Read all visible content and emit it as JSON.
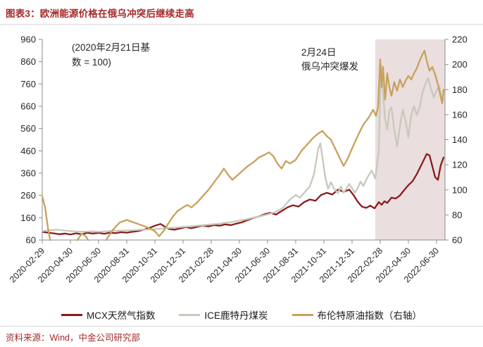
{
  "header": {
    "title": "图表3：欧洲能源价格在俄乌冲突后继续走高"
  },
  "source": "资料来源：Wind，中金公司研究部",
  "annotations": {
    "baseline_note_line1": "(2020年2月21日基",
    "baseline_note_line2": "数 = 100)",
    "conflict_note_line1": "2月24日",
    "conflict_note_line2": "俄乌冲突爆发"
  },
  "legend": {
    "items": [
      {
        "label": "MCX天然气指数",
        "color": "#8B1C1C"
      },
      {
        "label": "ICE鹿特丹煤炭",
        "color": "#C8C8BC"
      },
      {
        "label": "布伦特原油指数（右轴）",
        "color": "#C7A15C"
      }
    ]
  },
  "chart_data": {
    "type": "line",
    "title": "欧洲能源价格在俄乌冲突后继续走高",
    "subtitle_note": "(2020年2月21日基数 = 100)",
    "x_unit": "months since 2020-02-29",
    "x_range": [
      0,
      28.6
    ],
    "x_tick_positions": [
      0,
      2,
      4,
      6,
      8,
      10,
      12,
      14,
      16,
      18,
      20,
      22,
      24,
      26,
      28
    ],
    "x_tick_labels": [
      "2020-02-29",
      "2020-04-30",
      "2020-06-30",
      "2020-08-31",
      "2020-10-31",
      "2020-12-31",
      "2021-02-28",
      "2021-04-30",
      "2021-06-30",
      "2021-08-31",
      "2021-10-31",
      "2021-12-31",
      "2022-02-28",
      "2022-04-30",
      "2022-06-30"
    ],
    "left_axis": {
      "min": 60,
      "max": 960,
      "tick_step": 100,
      "ticks": [
        60,
        160,
        260,
        360,
        460,
        560,
        660,
        760,
        860,
        960
      ]
    },
    "right_axis": {
      "min": 60,
      "max": 220,
      "tick_step": 20,
      "ticks": [
        60,
        80,
        100,
        120,
        140,
        160,
        180,
        200,
        220
      ]
    },
    "grid": false,
    "legend_position": "bottom",
    "shaded_region": {
      "x_from": 23.65,
      "x_to": 28.6,
      "color": "#EADEDE",
      "meaning": "2月24日俄乌冲突爆发后区间"
    },
    "axis_color": "#8c8c8c",
    "series": [
      {
        "name": "MCX天然气指数",
        "axis": "left",
        "color": "#8B1C1C",
        "points": [
          [
            0,
            97
          ],
          [
            0.4,
            93
          ],
          [
            0.8,
            90
          ],
          [
            1.2,
            86
          ],
          [
            1.6,
            89
          ],
          [
            2,
            85
          ],
          [
            2.4,
            90
          ],
          [
            2.8,
            86
          ],
          [
            3.2,
            92
          ],
          [
            3.6,
            89
          ],
          [
            4,
            92
          ],
          [
            4.4,
            88
          ],
          [
            4.8,
            93
          ],
          [
            5.2,
            91
          ],
          [
            5.6,
            95
          ],
          [
            6,
            93
          ],
          [
            6.4,
            97
          ],
          [
            6.8,
            100
          ],
          [
            7.2,
            106
          ],
          [
            7.6,
            114
          ],
          [
            8,
            124
          ],
          [
            8.4,
            132
          ],
          [
            8.7,
            120
          ],
          [
            9,
            110
          ],
          [
            9.4,
            106
          ],
          [
            9.8,
            112
          ],
          [
            10.2,
            118
          ],
          [
            10.6,
            113
          ],
          [
            11,
            119
          ],
          [
            11.4,
            125
          ],
          [
            11.8,
            121
          ],
          [
            12.2,
            127
          ],
          [
            12.6,
            124
          ],
          [
            13,
            130
          ],
          [
            13.4,
            127
          ],
          [
            13.8,
            134
          ],
          [
            14.2,
            140
          ],
          [
            14.6,
            150
          ],
          [
            15,
            159
          ],
          [
            15.4,
            166
          ],
          [
            15.8,
            176
          ],
          [
            16.2,
            182
          ],
          [
            16.6,
            174
          ],
          [
            17,
            190
          ],
          [
            17.4,
            206
          ],
          [
            17.8,
            216
          ],
          [
            18.2,
            210
          ],
          [
            18.6,
            230
          ],
          [
            19,
            242
          ],
          [
            19.4,
            236
          ],
          [
            19.8,
            262
          ],
          [
            20.2,
            272
          ],
          [
            20.6,
            264
          ],
          [
            21,
            286
          ],
          [
            21.4,
            276
          ],
          [
            21.8,
            286
          ],
          [
            22.1,
            262
          ],
          [
            22.4,
            232
          ],
          [
            22.7,
            210
          ],
          [
            23,
            204
          ],
          [
            23.3,
            214
          ],
          [
            23.6,
            202
          ],
          [
            23.9,
            230
          ],
          [
            24.1,
            218
          ],
          [
            24.3,
            234
          ],
          [
            24.5,
            226
          ],
          [
            24.8,
            250
          ],
          [
            25.1,
            246
          ],
          [
            25.4,
            260
          ],
          [
            25.7,
            284
          ],
          [
            26,
            306
          ],
          [
            26.3,
            324
          ],
          [
            26.6,
            356
          ],
          [
            26.9,
            394
          ],
          [
            27.1,
            420
          ],
          [
            27.3,
            446
          ],
          [
            27.5,
            440
          ],
          [
            27.7,
            392
          ],
          [
            27.9,
            342
          ],
          [
            28.1,
            330
          ],
          [
            28.3,
            396
          ],
          [
            28.5,
            430
          ]
        ]
      },
      {
        "name": "ICE鹿特丹煤炭",
        "axis": "left",
        "color": "#C8C8BC",
        "points": [
          [
            0,
            100
          ],
          [
            0.5,
            104
          ],
          [
            1,
            106
          ],
          [
            1.5,
            103
          ],
          [
            2,
            100
          ],
          [
            2.5,
            98
          ],
          [
            3,
            97
          ],
          [
            3.5,
            99
          ],
          [
            4,
            97
          ],
          [
            4.5,
            99
          ],
          [
            5,
            101
          ],
          [
            5.5,
            102
          ],
          [
            6,
            103
          ],
          [
            6.5,
            104
          ],
          [
            7,
            106
          ],
          [
            7.5,
            107
          ],
          [
            8,
            109
          ],
          [
            8.5,
            111
          ],
          [
            9,
            114
          ],
          [
            9.5,
            116
          ],
          [
            10,
            119
          ],
          [
            10.5,
            121
          ],
          [
            11,
            124
          ],
          [
            11.5,
            127
          ],
          [
            12,
            130
          ],
          [
            12.5,
            133
          ],
          [
            13,
            137
          ],
          [
            13.5,
            141
          ],
          [
            14,
            147
          ],
          [
            14.5,
            153
          ],
          [
            15,
            160
          ],
          [
            15.5,
            167
          ],
          [
            16,
            175
          ],
          [
            16.5,
            184
          ],
          [
            17,
            200
          ],
          [
            17.3,
            220
          ],
          [
            17.6,
            242
          ],
          [
            18,
            262
          ],
          [
            18.3,
            250
          ],
          [
            18.6,
            272
          ],
          [
            19,
            300
          ],
          [
            19.3,
            356
          ],
          [
            19.6,
            470
          ],
          [
            19.75,
            494
          ],
          [
            19.9,
            430
          ],
          [
            20.1,
            340
          ],
          [
            20.3,
            290
          ],
          [
            20.5,
            320
          ],
          [
            20.7,
            292
          ],
          [
            21,
            270
          ],
          [
            21.2,
            300
          ],
          [
            21.4,
            272
          ],
          [
            21.6,
            292
          ],
          [
            21.8,
            312
          ],
          [
            22,
            292
          ],
          [
            22.2,
            272
          ],
          [
            22.4,
            292
          ],
          [
            22.6,
            322
          ],
          [
            22.8,
            302
          ],
          [
            23.1,
            342
          ],
          [
            23.4,
            372
          ],
          [
            23.65,
            336
          ],
          [
            23.9,
            460
          ],
          [
            24.05,
            845
          ],
          [
            24.2,
            720
          ],
          [
            24.35,
            600
          ],
          [
            24.5,
            555
          ],
          [
            24.65,
            640
          ],
          [
            24.8,
            655
          ],
          [
            25,
            555
          ],
          [
            25.2,
            480
          ],
          [
            25.4,
            570
          ],
          [
            25.6,
            645
          ],
          [
            25.8,
            595
          ],
          [
            26,
            520
          ],
          [
            26.2,
            620
          ],
          [
            26.4,
            660
          ],
          [
            26.6,
            622
          ],
          [
            26.8,
            652
          ],
          [
            27,
            722
          ],
          [
            27.2,
            760
          ],
          [
            27.4,
            786
          ],
          [
            27.6,
            740
          ],
          [
            27.8,
            700
          ],
          [
            28,
            730
          ],
          [
            28.2,
            750
          ],
          [
            28.35,
            700
          ],
          [
            28.5,
            690
          ]
        ]
      },
      {
        "name": "布伦特原油指数（右轴）",
        "axis": "right",
        "color": "#C7A15C",
        "points": [
          [
            0,
            95
          ],
          [
            0.2,
            86
          ],
          [
            0.4,
            70
          ],
          [
            0.6,
            58
          ],
          [
            0.8,
            48
          ],
          [
            1,
            42
          ],
          [
            1.3,
            36
          ],
          [
            1.6,
            41
          ],
          [
            1.9,
            48
          ],
          [
            2.2,
            55
          ],
          [
            2.5,
            60
          ],
          [
            2.8,
            65
          ],
          [
            3.1,
            63
          ],
          [
            3.4,
            57
          ],
          [
            3.7,
            52
          ],
          [
            4,
            50
          ],
          [
            4.3,
            55
          ],
          [
            4.6,
            61
          ],
          [
            5,
            68
          ],
          [
            5.5,
            74
          ],
          [
            6,
            76
          ],
          [
            6.5,
            74
          ],
          [
            7,
            72
          ],
          [
            7.5,
            70
          ],
          [
            8,
            67
          ],
          [
            8.3,
            63
          ],
          [
            8.6,
            67
          ],
          [
            9,
            74
          ],
          [
            9.3,
            79
          ],
          [
            9.6,
            83
          ],
          [
            10,
            86
          ],
          [
            10.3,
            88
          ],
          [
            10.6,
            86
          ],
          [
            11,
            90
          ],
          [
            11.4,
            95
          ],
          [
            11.8,
            100
          ],
          [
            12.2,
            106
          ],
          [
            12.6,
            112
          ],
          [
            12.9,
            117
          ],
          [
            13.2,
            112
          ],
          [
            13.5,
            108
          ],
          [
            13.8,
            111
          ],
          [
            14.2,
            115
          ],
          [
            14.6,
            119
          ],
          [
            15,
            122
          ],
          [
            15.4,
            126
          ],
          [
            15.8,
            128
          ],
          [
            16.1,
            130
          ],
          [
            16.4,
            127
          ],
          [
            16.7,
            121
          ],
          [
            17,
            117
          ],
          [
            17.3,
            123
          ],
          [
            17.6,
            121
          ],
          [
            18,
            124
          ],
          [
            18.4,
            131
          ],
          [
            18.8,
            136
          ],
          [
            19.2,
            141
          ],
          [
            19.6,
            145
          ],
          [
            19.9,
            147
          ],
          [
            20.2,
            143
          ],
          [
            20.5,
            140
          ],
          [
            20.8,
            133
          ],
          [
            21.1,
            126
          ],
          [
            21.4,
            119
          ],
          [
            21.7,
            125
          ],
          [
            22,
            133
          ],
          [
            22.4,
            143
          ],
          [
            22.8,
            152
          ],
          [
            23.2,
            158
          ],
          [
            23.5,
            164
          ],
          [
            23.7,
            159
          ],
          [
            23.85,
            166
          ],
          [
            24,
            204
          ],
          [
            24.1,
            182
          ],
          [
            24.2,
            198
          ],
          [
            24.35,
            172
          ],
          [
            24.5,
            193
          ],
          [
            24.65,
            182
          ],
          [
            24.8,
            175
          ],
          [
            25,
            186
          ],
          [
            25.2,
            179
          ],
          [
            25.4,
            188
          ],
          [
            25.6,
            182
          ],
          [
            25.8,
            187
          ],
          [
            26,
            191
          ],
          [
            26.2,
            188
          ],
          [
            26.4,
            193
          ],
          [
            26.6,
            197
          ],
          [
            26.8,
            203
          ],
          [
            27,
            208
          ],
          [
            27.15,
            211
          ],
          [
            27.3,
            203
          ],
          [
            27.5,
            195
          ],
          [
            27.7,
            198
          ],
          [
            27.9,
            192
          ],
          [
            28.1,
            184
          ],
          [
            28.3,
            174
          ],
          [
            28.4,
            169
          ],
          [
            28.5,
            180
          ]
        ]
      }
    ]
  }
}
